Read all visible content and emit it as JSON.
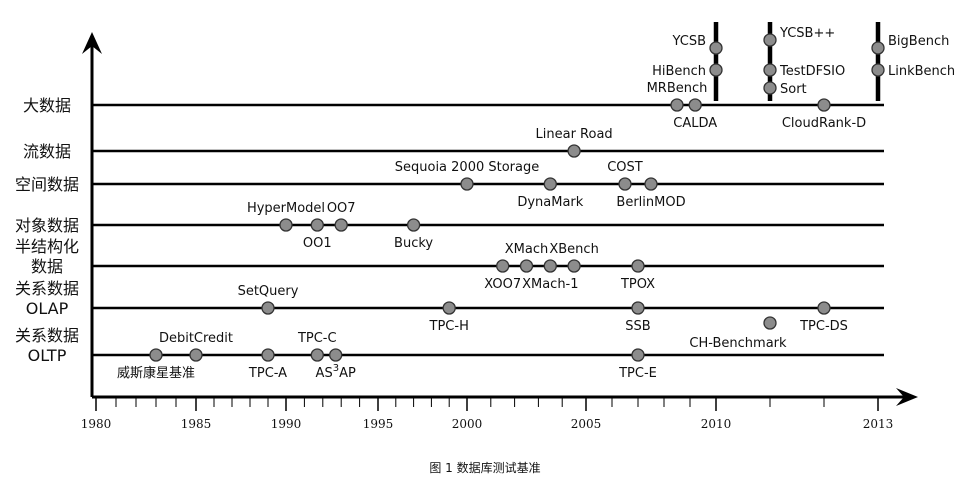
{
  "chart_data": {
    "type": "timeline",
    "caption": "图 1  数据库测试基准",
    "x_ticks": [
      {
        "label": "1980",
        "year": 1980
      },
      {
        "label": "1985",
        "year": 1985
      },
      {
        "label": "1990",
        "year": 1990
      },
      {
        "label": "1995",
        "year": 1995
      },
      {
        "label": "2000",
        "year": 2000
      },
      {
        "label": "2005",
        "year": 2005
      },
      {
        "label": "2010",
        "year": 2010
      },
      {
        "label": "2013",
        "year": 2013
      }
    ],
    "xlim": [
      1980,
      2013.2
    ],
    "rows": [
      {
        "label": [
          "大数据"
        ],
        "benchmarks": [
          {
            "name": "MRBench",
            "year": 2008.5,
            "pos": "above"
          },
          {
            "name": "CALDA",
            "year": 2009.2,
            "pos": "below"
          },
          {
            "name": "CloudRank-D",
            "year": 2012.0,
            "pos": "below"
          }
        ]
      },
      {
        "label": [
          "流数据"
        ],
        "benchmarks": [
          {
            "name": "Linear Road",
            "year": 2004.5,
            "pos": "above"
          }
        ]
      },
      {
        "label": [
          "空间数据"
        ],
        "benchmarks": [
          {
            "name": "Sequoia 2000 Storage",
            "year": 2000.0,
            "pos": "above"
          },
          {
            "name": "DynaMark",
            "year": 2003.5,
            "pos": "below"
          },
          {
            "name": "COST",
            "year": 2006.5,
            "pos": "above"
          },
          {
            "name": "BerlinMOD",
            "year": 2007.5,
            "pos": "below"
          }
        ]
      },
      {
        "label": [
          "对象数据"
        ],
        "benchmarks": [
          {
            "name": "HyperModel",
            "year": 1990.0,
            "pos": "above"
          },
          {
            "name": "OO1",
            "year": 1991.7,
            "pos": "below"
          },
          {
            "name": "OO7",
            "year": 1993.0,
            "pos": "above"
          },
          {
            "name": "Bucky",
            "year": 1997.0,
            "pos": "below"
          }
        ]
      },
      {
        "label": [
          "半结构化",
          "数据"
        ],
        "benchmarks": [
          {
            "name": "XOO7",
            "year": 2001.5,
            "pos": "below"
          },
          {
            "name": "XMach",
            "year": 2002.5,
            "pos": "above"
          },
          {
            "name": "XMach-1",
            "year": 2003.5,
            "pos": "below"
          },
          {
            "name": "XBench",
            "year": 2004.5,
            "pos": "above"
          },
          {
            "name": "TPOX",
            "year": 2007.0,
            "pos": "below"
          }
        ]
      },
      {
        "label": [
          "关系数据",
          "OLAP"
        ],
        "benchmarks": [
          {
            "name": "SetQuery",
            "year": 1989.0,
            "pos": "above"
          },
          {
            "name": "TPC-H",
            "year": 1999.0,
            "pos": "below"
          },
          {
            "name": "SSB",
            "year": 2007.0,
            "pos": "below"
          },
          {
            "name": "TPC-DS",
            "year": 2012.0,
            "pos": "below"
          }
        ]
      },
      {
        "label": [
          "关系数据",
          "OLTP"
        ],
        "benchmarks": [
          {
            "name": "威斯康星基准",
            "year": 1983.0,
            "pos": "below"
          },
          {
            "name": "DebitCredit",
            "year": 1985.0,
            "pos": "above"
          },
          {
            "name": "TPC-A",
            "year": 1989.0,
            "pos": "below"
          },
          {
            "name": "TPC-C",
            "year": 1991.7,
            "pos": "above"
          },
          {
            "name": "AS³AP",
            "year": 1992.7,
            "pos": "below"
          },
          {
            "name": "TPC-E",
            "year": 2007.0,
            "pos": "below"
          }
        ]
      }
    ],
    "floating": [
      {
        "name": "CH-Benchmark",
        "year": 2011.0
      }
    ],
    "vertical_groups": [
      {
        "year": 2010.0,
        "items": [
          "YCSB",
          "HiBench"
        ],
        "label_side": "left"
      },
      {
        "year": 2011.0,
        "items": [
          "YCSB++",
          "TestDFSIO",
          "Sort"
        ],
        "label_side": "right"
      },
      {
        "year": 2013.0,
        "items": [
          "BigBench",
          "LinkBench"
        ],
        "label_side": "right"
      }
    ]
  }
}
